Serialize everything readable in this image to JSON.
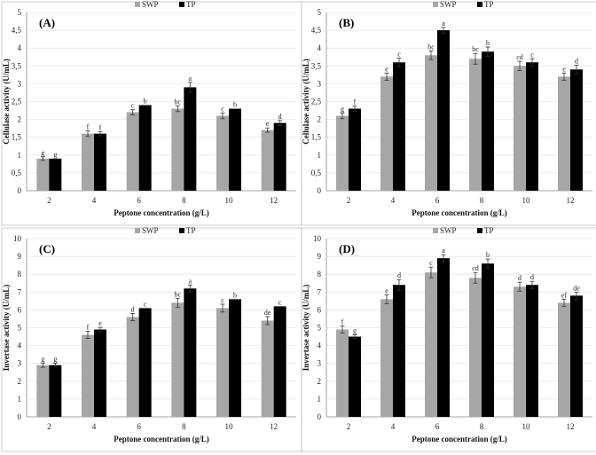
{
  "chart_data": [
    {
      "panel": "(A)",
      "type": "bar",
      "xlabel": "Peptone concentration (g/L)",
      "ylabel": "Cellulase activity (U/mL)",
      "ylim": [
        0,
        5
      ],
      "ystep": 0.5,
      "yticks": [
        "0",
        "0,5",
        "1",
        "1,5",
        "2",
        "2,5",
        "3",
        "3,5",
        "4",
        "4,5",
        "5"
      ],
      "categories": [
        "2",
        "4",
        "6",
        "8",
        "10",
        "12"
      ],
      "legend": [
        "SWP",
        "TP"
      ],
      "series": [
        {
          "name": "SWP",
          "color": "#a6a6a6",
          "values": [
            0.9,
            1.6,
            2.2,
            2.3,
            2.1,
            1.7
          ],
          "errors": [
            0.05,
            0.08,
            0.07,
            0.08,
            0.08,
            0.06
          ],
          "letters": [
            "g",
            "f",
            "c",
            "bc",
            "c",
            "e"
          ]
        },
        {
          "name": "TP",
          "color": "#000000",
          "values": [
            0.9,
            1.6,
            2.4,
            2.9,
            2.3,
            1.9
          ],
          "errors": [
            0.0,
            0.06,
            0.0,
            0.14,
            0.0,
            0.07
          ],
          "letters": [
            "g",
            "f",
            "b",
            "a",
            "b",
            "d"
          ]
        }
      ]
    },
    {
      "panel": "(B)",
      "type": "bar",
      "xlabel": "Peptone concentration (g/L)",
      "ylabel": "Cellulase activity (U/mL)",
      "ylim": [
        0,
        5
      ],
      "ystep": 0.5,
      "yticks": [
        "0",
        "0,5",
        "1",
        "1,5",
        "2",
        "2,5",
        "3",
        "3,5",
        "4",
        "4,5",
        "5"
      ],
      "categories": [
        "2",
        "4",
        "6",
        "8",
        "10",
        "12"
      ],
      "legend": [
        "SWP",
        "TP"
      ],
      "series": [
        {
          "name": "SWP",
          "color": "#a6a6a6",
          "values": [
            2.1,
            3.2,
            3.8,
            3.7,
            3.5,
            3.2
          ],
          "errors": [
            0.08,
            0.1,
            0.12,
            0.15,
            0.13,
            0.1
          ],
          "letters": [
            "g",
            "e",
            "bc",
            "bc",
            "cd",
            "e"
          ]
        },
        {
          "name": "TP",
          "color": "#000000",
          "values": [
            2.3,
            3.6,
            4.5,
            3.9,
            3.6,
            3.4
          ],
          "errors": [
            0.07,
            0.12,
            0.08,
            0.13,
            0.1,
            0.12
          ],
          "letters": [
            "f",
            "c",
            "a",
            "b",
            "c",
            "d"
          ]
        }
      ]
    },
    {
      "panel": "(C)",
      "type": "bar",
      "xlabel": "Peptone concentration (g/L)",
      "ylabel": "Invertase activity (U/mL)",
      "ylim": [
        0,
        10
      ],
      "ystep": 1,
      "yticks": [
        "0",
        "1",
        "2",
        "3",
        "4",
        "5",
        "6",
        "7",
        "8",
        "9",
        "10"
      ],
      "categories": [
        "2",
        "4",
        "6",
        "8",
        "10",
        "12"
      ],
      "legend": [
        "SWP",
        "TP"
      ],
      "series": [
        {
          "name": "SWP",
          "color": "#a6a6a6",
          "values": [
            2.9,
            4.6,
            5.6,
            6.4,
            6.1,
            5.4
          ],
          "errors": [
            0.12,
            0.2,
            0.2,
            0.25,
            0.22,
            0.22
          ],
          "letters": [
            "g",
            "f",
            "d",
            "bc",
            "c",
            "de"
          ]
        },
        {
          "name": "TP",
          "color": "#000000",
          "values": [
            2.9,
            4.9,
            6.1,
            7.2,
            6.6,
            6.2
          ],
          "errors": [
            0.1,
            0.12,
            0.0,
            0.2,
            0.0,
            0.0
          ],
          "letters": [
            "g",
            "e",
            "c",
            "a",
            "b",
            "c"
          ]
        }
      ]
    },
    {
      "panel": "(D)",
      "type": "bar",
      "xlabel": "Peptone concentration (g/L)",
      "ylabel": "Invertase activity (U/mL)",
      "ylim": [
        0,
        10
      ],
      "ystep": 1,
      "yticks": [
        "0",
        "1",
        "2",
        "3",
        "4",
        "5",
        "6",
        "7",
        "8",
        "9",
        "10"
      ],
      "categories": [
        "2",
        "4",
        "6",
        "8",
        "10",
        "12"
      ],
      "legend": [
        "SWP",
        "TP"
      ],
      "series": [
        {
          "name": "SWP",
          "color": "#a6a6a6",
          "values": [
            4.9,
            6.6,
            8.1,
            7.8,
            7.3,
            6.4
          ],
          "errors": [
            0.2,
            0.25,
            0.3,
            0.3,
            0.25,
            0.2
          ],
          "letters": [
            "f",
            "e",
            "c",
            "cd",
            "d",
            "ef"
          ]
        },
        {
          "name": "TP",
          "color": "#000000",
          "values": [
            4.5,
            7.4,
            8.9,
            8.6,
            7.4,
            6.8
          ],
          "errors": [
            0.1,
            0.3,
            0.2,
            0.25,
            0.2,
            0.2
          ],
          "letters": [
            "g",
            "d",
            "a",
            "b",
            "d",
            "de"
          ]
        }
      ]
    }
  ]
}
